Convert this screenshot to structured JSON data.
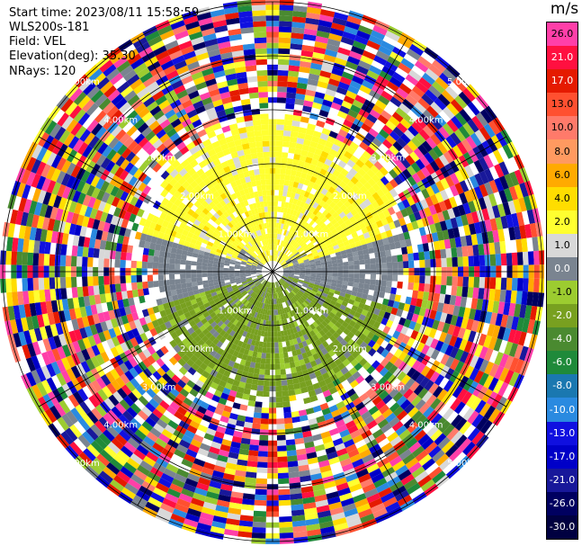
{
  "header": {
    "start_time": "Start time: 2023/08/11 15:58:59",
    "instrument": "WLS200s-181",
    "field": "Field: VEL",
    "elevation": "Elevation(deg): 35.30",
    "nrays": "NRays: 120"
  },
  "chart_data": {
    "type": "heatmap",
    "projection": "polar PPI",
    "field": "VEL",
    "units": "m/s",
    "elevation_deg": 35.3,
    "n_rays": 120,
    "range_ring_labels": [
      "1.00km",
      "2.00km",
      "3.00km",
      "4.00km",
      "5.00km"
    ],
    "colorbar": {
      "title": "m/s",
      "ticks": [
        "26.0",
        "21.0",
        "17.0",
        "13.0",
        "10.0",
        "8.0",
        "6.0",
        "4.0",
        "2.0",
        "1.0",
        "0.0",
        "-1.0",
        "-2.0",
        "-4.0",
        "-6.0",
        "-8.0",
        "-10.0",
        "-13.0",
        "-17.0",
        "-21.0",
        "-26.0",
        "-30.0"
      ],
      "colors": [
        "#ff3fa8",
        "#ff1040",
        "#e51a00",
        "#ff5030",
        "#ff7a6a",
        "#ff9a60",
        "#ffaa00",
        "#ffdd00",
        "#ffff30",
        "#d8d8d8",
        "#7a8490",
        "#9ccc30",
        "#78a020",
        "#4a8a30",
        "#1f8a3a",
        "#1a78b0",
        "#2a8ae0",
        "#1010e0",
        "#0000c8",
        "#18189a",
        "#000060",
        "#000040"
      ]
    },
    "pattern_summary": {
      "inner_region": "approaching (yellow, +2 to +4 m/s) toward north, receding (olive green, -2 to -4 m/s) toward south, near-zero gray band east-west",
      "outer_region": "noise (random colors)"
    }
  }
}
